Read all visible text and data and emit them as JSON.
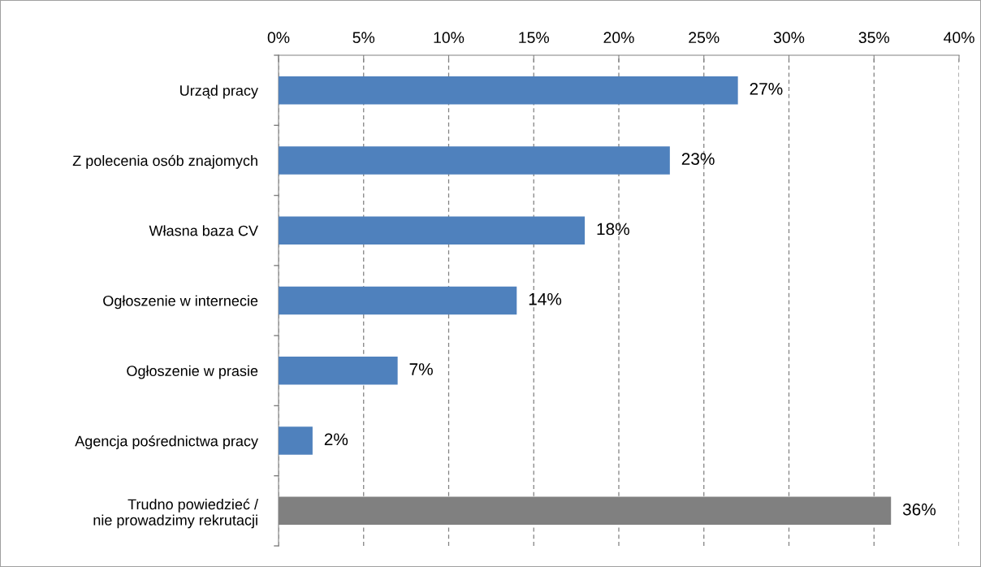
{
  "chart_data": {
    "type": "bar",
    "orientation": "horizontal",
    "categories": [
      "Urząd pracy",
      "Z polecenia osób znajomych",
      "Własna baza CV",
      "Ogłoszenie w internecie",
      "Ogłoszenie w prasie",
      "Agencja pośrednictwa pracy",
      "Trudno powiedzieć /\nnie prowadzimy rekrutacji"
    ],
    "values": [
      27,
      23,
      18,
      14,
      7,
      2,
      36
    ],
    "colors": [
      "#4f81bd",
      "#4f81bd",
      "#4f81bd",
      "#4f81bd",
      "#4f81bd",
      "#4f81bd",
      "#808080"
    ],
    "value_labels": [
      "27%",
      "23%",
      "18%",
      "14%",
      "7%",
      "2%",
      "36%"
    ],
    "xlim": [
      0,
      40
    ],
    "xticks": [
      {
        "value": 0,
        "label": "0%"
      },
      {
        "value": 5,
        "label": "5%"
      },
      {
        "value": 10,
        "label": "10%"
      },
      {
        "value": 15,
        "label": "15%"
      },
      {
        "value": 20,
        "label": "20%"
      },
      {
        "value": 25,
        "label": "25%"
      },
      {
        "value": 30,
        "label": "30%"
      },
      {
        "value": 35,
        "label": "35%"
      },
      {
        "value": 40,
        "label": "40%"
      }
    ],
    "grid": "x"
  }
}
